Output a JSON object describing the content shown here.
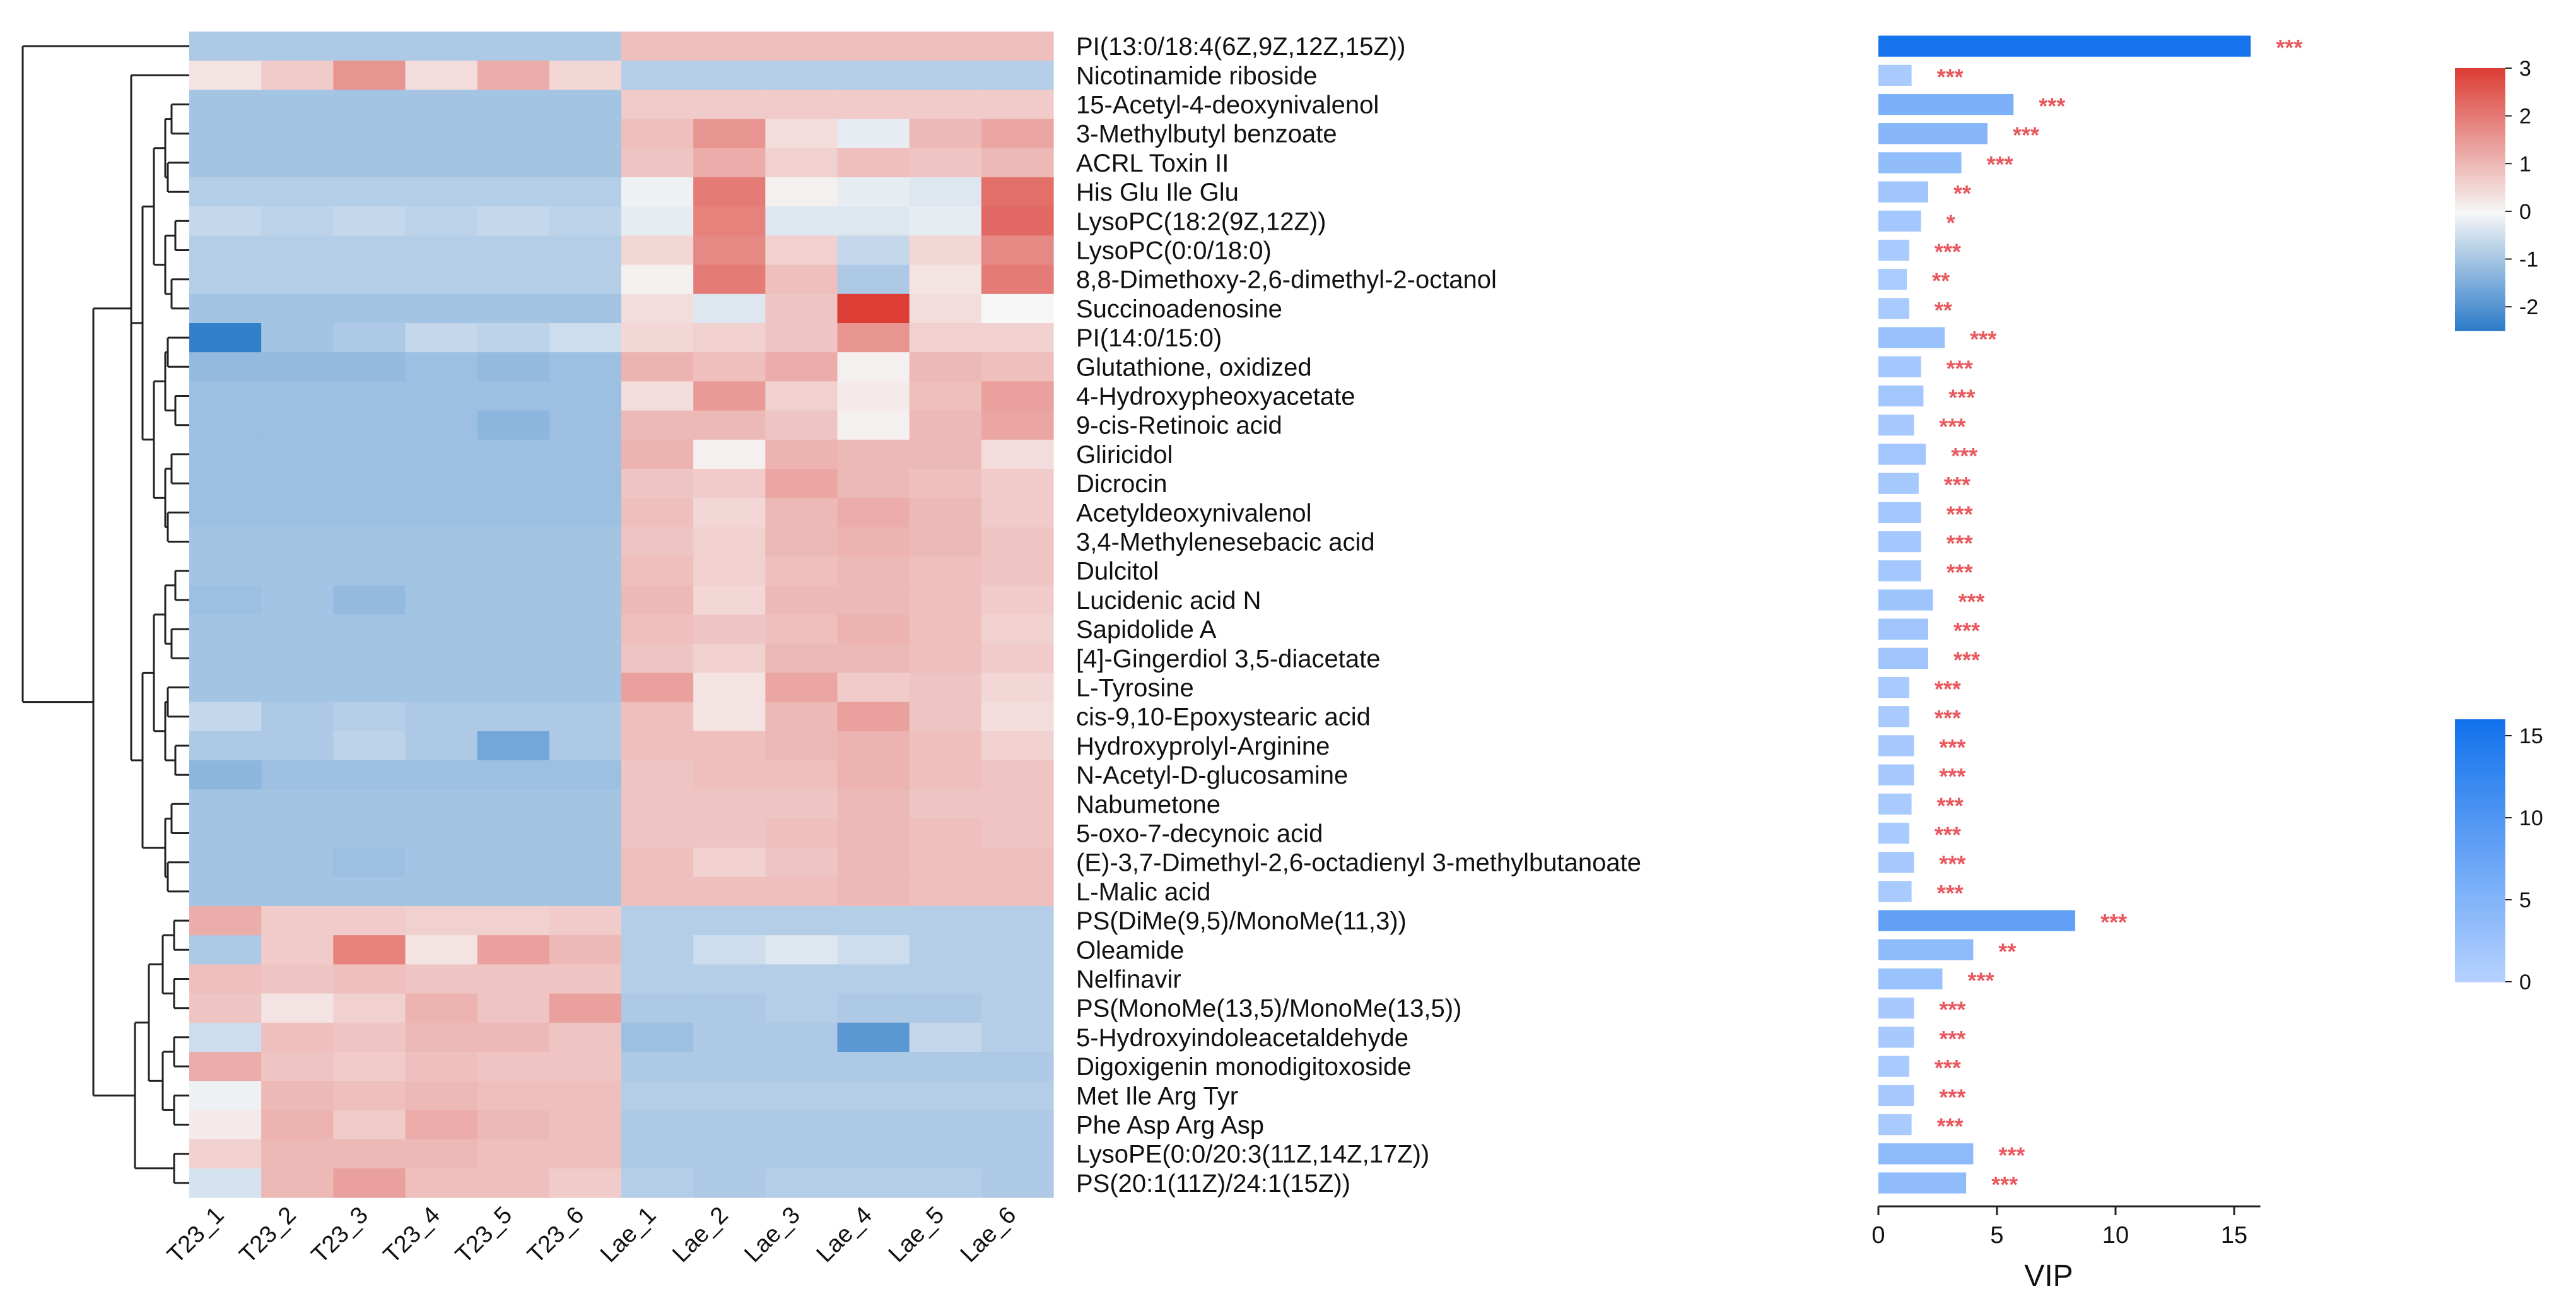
{
  "chart_data": [
    {
      "type": "heatmap",
      "title": "",
      "columns": [
        "T23_1",
        "T23_2",
        "T23_3",
        "T23_4",
        "T23_5",
        "T23_6",
        "Lae_1",
        "Lae_2",
        "Lae_3",
        "Lae_4",
        "Lae_5",
        "Lae_6"
      ],
      "rows": [
        "PI(13:0/18:4(6Z,9Z,12Z,15Z))",
        "Nicotinamide riboside",
        "15-Acetyl-4-deoxynivalenol",
        "3-Methylbutyl benzoate",
        "ACRL Toxin II",
        "His Glu Ile Glu",
        "LysoPC(18:2(9Z,12Z))",
        "LysoPC(0:0/18:0)",
        "8,8-Dimethoxy-2,6-dimethyl-2-octanol",
        "Succinoadenosine",
        "PI(14:0/15:0)",
        "Glutathione, oxidized",
        "4-Hydroxypheoxyacetate",
        "9-cis-Retinoic acid",
        "Gliricidol",
        "Dicrocin",
        "Acetyldeoxynivalenol",
        "3,4-Methylenesebacic acid",
        "Dulcitol",
        "Lucidenic acid N",
        "Sapidolide A",
        "[4]-Gingerdiol 3,5-diacetate",
        "L-Tyrosine",
        "cis-9,10-Epoxystearic acid",
        "Hydroxyprolyl-Arginine",
        "N-Acetyl-D-glucosamine",
        "Nabumetone",
        "5-oxo-7-decynoic acid",
        "(E)-3,7-Dimethyl-2,6-octadienyl 3-methylbutanoate",
        "L-Malic acid",
        "PS(DiMe(9,5)/MonoMe(11,3))",
        "Oleamide",
        "Nelfinavir",
        "PS(MonoMe(13,5)/MonoMe(13,5))",
        "5-Hydroxyindoleacetaldehyde",
        "Digoxigenin monodigitoxoside",
        "Met Ile Arg Tyr",
        "Phe Asp Arg Asp",
        "LysoPE(0:0/20:3(11Z,14Z,17Z))",
        "PS(20:1(11Z)/24:1(15Z))"
      ],
      "values": [
        [
          -0.9,
          -0.9,
          -0.9,
          -0.9,
          -0.9,
          -0.9,
          0.9,
          0.9,
          0.9,
          0.9,
          0.9,
          0.9
        ],
        [
          0.3,
          0.7,
          1.6,
          0.4,
          1.2,
          0.5,
          -0.8,
          -0.8,
          -0.8,
          -0.8,
          -0.8,
          -0.8
        ],
        [
          -1.0,
          -1.0,
          -1.0,
          -1.0,
          -1.0,
          -1.0,
          0.7,
          0.7,
          0.7,
          0.7,
          0.7,
          0.7
        ],
        [
          -1.0,
          -1.0,
          -1.0,
          -1.0,
          -1.0,
          -1.0,
          0.9,
          1.6,
          0.4,
          -0.2,
          1.0,
          1.3
        ],
        [
          -1.0,
          -1.0,
          -1.0,
          -1.0,
          -1.0,
          -1.0,
          0.8,
          1.2,
          0.6,
          0.9,
          0.8,
          1.0
        ],
        [
          -0.8,
          -0.8,
          -0.8,
          -0.8,
          -0.8,
          -0.8,
          -0.1,
          2.0,
          0.1,
          -0.2,
          -0.3,
          2.2
        ],
        [
          -0.6,
          -0.7,
          -0.6,
          -0.7,
          -0.6,
          -0.7,
          -0.2,
          1.9,
          -0.3,
          -0.3,
          -0.2,
          2.3
        ],
        [
          -0.8,
          -0.8,
          -0.8,
          -0.8,
          -0.8,
          -0.8,
          0.5,
          1.8,
          0.6,
          -0.6,
          0.5,
          1.8
        ],
        [
          -0.8,
          -0.8,
          -0.8,
          -0.8,
          -0.8,
          -0.8,
          0.1,
          2.0,
          0.9,
          -0.9,
          0.3,
          2.0
        ],
        [
          -1.0,
          -1.0,
          -1.0,
          -1.0,
          -1.0,
          -1.0,
          0.4,
          -0.3,
          0.8,
          3.0,
          0.4,
          0.0
        ],
        [
          -2.4,
          -1.0,
          -0.9,
          -0.6,
          -0.7,
          -0.5,
          0.5,
          0.6,
          0.8,
          1.6,
          0.6,
          0.6
        ],
        [
          -1.2,
          -1.2,
          -1.2,
          -1.1,
          -1.2,
          -1.1,
          1.1,
          0.9,
          1.2,
          0.1,
          1.0,
          0.9
        ],
        [
          -1.1,
          -1.1,
          -1.1,
          -1.1,
          -1.1,
          -1.1,
          0.4,
          1.5,
          0.6,
          0.2,
          0.9,
          1.4
        ],
        [
          -1.1,
          -1.1,
          -1.1,
          -1.1,
          -1.3,
          -1.1,
          1.0,
          1.0,
          0.8,
          0.1,
          1.0,
          1.3
        ],
        [
          -1.1,
          -1.1,
          -1.1,
          -1.1,
          -1.1,
          -1.1,
          1.1,
          0.1,
          1.1,
          1.0,
          1.0,
          0.4
        ],
        [
          -1.1,
          -1.1,
          -1.1,
          -1.1,
          -1.1,
          -1.1,
          0.8,
          0.7,
          1.3,
          1.0,
          0.9,
          0.7
        ],
        [
          -1.1,
          -1.1,
          -1.1,
          -1.1,
          -1.1,
          -1.1,
          0.9,
          0.5,
          1.0,
          1.2,
          1.0,
          0.7
        ],
        [
          -1.0,
          -1.0,
          -1.0,
          -1.0,
          -1.0,
          -1.0,
          0.8,
          0.6,
          1.0,
          1.1,
          1.0,
          0.8
        ],
        [
          -1.0,
          -1.0,
          -1.0,
          -1.0,
          -1.0,
          -1.0,
          0.9,
          0.6,
          0.9,
          1.0,
          0.9,
          0.8
        ],
        [
          -1.1,
          -1.0,
          -1.2,
          -1.0,
          -1.0,
          -1.0,
          1.0,
          0.5,
          1.0,
          1.0,
          0.9,
          0.7
        ],
        [
          -1.0,
          -1.0,
          -1.0,
          -1.0,
          -1.0,
          -1.0,
          0.9,
          0.8,
          0.9,
          1.1,
          0.9,
          0.6
        ],
        [
          -1.0,
          -1.0,
          -1.0,
          -1.0,
          -1.0,
          -1.0,
          0.8,
          0.6,
          1.0,
          1.0,
          0.9,
          0.7
        ],
        [
          -1.0,
          -1.0,
          -1.0,
          -1.0,
          -1.0,
          -1.0,
          1.4,
          0.3,
          1.3,
          0.7,
          0.8,
          0.5
        ],
        [
          -0.6,
          -0.9,
          -0.8,
          -0.9,
          -0.9,
          -0.9,
          0.9,
          0.3,
          1.0,
          1.4,
          0.8,
          0.4
        ],
        [
          -0.9,
          -0.9,
          -0.7,
          -0.9,
          -1.6,
          -0.9,
          0.9,
          0.9,
          1.0,
          1.1,
          0.9,
          0.6
        ],
        [
          -1.3,
          -1.1,
          -1.1,
          -1.1,
          -1.1,
          -1.1,
          0.8,
          0.9,
          0.9,
          1.1,
          0.9,
          0.8
        ],
        [
          -1.0,
          -1.0,
          -1.0,
          -1.0,
          -1.0,
          -1.0,
          0.8,
          0.8,
          0.8,
          1.0,
          0.8,
          0.8
        ],
        [
          -1.0,
          -1.0,
          -1.0,
          -1.0,
          -1.0,
          -1.0,
          0.8,
          0.8,
          0.9,
          1.0,
          0.9,
          0.8
        ],
        [
          -1.0,
          -1.0,
          -1.1,
          -1.0,
          -1.0,
          -1.0,
          0.9,
          0.6,
          0.8,
          1.0,
          0.9,
          0.9
        ],
        [
          -1.0,
          -1.0,
          -1.0,
          -1.0,
          -1.0,
          -1.0,
          0.9,
          0.9,
          0.9,
          1.0,
          0.9,
          0.9
        ],
        [
          1.2,
          0.7,
          0.7,
          0.6,
          0.6,
          0.7,
          -0.8,
          -0.8,
          -0.8,
          -0.8,
          -0.8,
          -0.8
        ],
        [
          -0.9,
          0.7,
          1.9,
          0.3,
          1.4,
          1.0,
          -0.8,
          -0.5,
          -0.3,
          -0.5,
          -0.8,
          -0.8
        ],
        [
          0.9,
          0.8,
          0.9,
          0.8,
          0.8,
          0.8,
          -0.8,
          -0.8,
          -0.8,
          -0.8,
          -0.8,
          -0.8
        ],
        [
          0.8,
          0.3,
          0.6,
          1.1,
          0.8,
          1.4,
          -0.9,
          -0.9,
          -0.8,
          -0.9,
          -0.9,
          -0.8
        ],
        [
          -0.5,
          0.9,
          0.8,
          1.0,
          1.0,
          0.8,
          -1.1,
          -0.9,
          -0.9,
          -1.9,
          -0.6,
          -0.8
        ],
        [
          1.2,
          0.8,
          0.7,
          0.9,
          0.8,
          0.8,
          -0.9,
          -0.9,
          -0.9,
          -0.9,
          -0.9,
          -0.9
        ],
        [
          -0.1,
          1.0,
          0.9,
          1.0,
          0.9,
          0.9,
          -0.8,
          -0.8,
          -0.8,
          -0.8,
          -0.8,
          -0.8
        ],
        [
          0.2,
          1.1,
          0.7,
          1.2,
          1.0,
          0.9,
          -0.9,
          -0.9,
          -0.9,
          -0.9,
          -0.9,
          -0.9
        ],
        [
          0.6,
          1.0,
          1.0,
          1.0,
          0.9,
          0.9,
          -0.9,
          -0.9,
          -0.9,
          -0.9,
          -0.9,
          -0.9
        ],
        [
          -0.4,
          1.0,
          1.4,
          0.9,
          0.9,
          0.7,
          -0.8,
          -0.9,
          -0.8,
          -0.8,
          -0.8,
          -0.9
        ]
      ],
      "color_scale": {
        "min": -2.5,
        "max": 3,
        "low": "#2a7ac8",
        "mid": "#f6f6f6",
        "high": "#dc3e36"
      },
      "colorbar_ticks": [
        "3",
        "2",
        "1",
        "0",
        "-1",
        "-2"
      ],
      "colorbar_tick_values": [
        3,
        2,
        1,
        0,
        -1,
        -2
      ],
      "dendrogram": true
    },
    {
      "type": "bar",
      "orientation": "horizontal",
      "xlabel": "VIP",
      "xlim": [
        0,
        16
      ],
      "xticks": [
        0,
        5,
        10,
        15
      ],
      "xtick_labels": [
        "0",
        "5",
        "10",
        "15"
      ],
      "values": [
        15.7,
        1.4,
        5.7,
        4.6,
        3.5,
        2.1,
        1.8,
        1.3,
        1.2,
        1.3,
        2.8,
        1.8,
        1.9,
        1.5,
        2.0,
        1.7,
        1.8,
        1.8,
        1.8,
        2.3,
        2.1,
        2.1,
        1.3,
        1.3,
        1.5,
        1.5,
        1.4,
        1.3,
        1.5,
        1.4,
        8.3,
        4.0,
        2.7,
        1.5,
        1.5,
        1.3,
        1.5,
        1.4,
        4.0,
        3.7
      ],
      "significance": [
        "***",
        "***",
        "***",
        "***",
        "***",
        "**",
        "*",
        "***",
        "**",
        "**",
        "***",
        "***",
        "***",
        "***",
        "***",
        "***",
        "***",
        "***",
        "***",
        "***",
        "***",
        "***",
        "***",
        "***",
        "***",
        "***",
        "***",
        "***",
        "***",
        "***",
        "***",
        "**",
        "***",
        "***",
        "***",
        "***",
        "***",
        "***",
        "***",
        "***"
      ],
      "color_scale": {
        "min": 0,
        "max": 16,
        "low": "#b6d2ff",
        "high": "#1272ec"
      },
      "colorbar_ticks": [
        "15",
        "10",
        "5",
        "0"
      ],
      "colorbar_tick_values": [
        15,
        10,
        5,
        0
      ]
    }
  ]
}
